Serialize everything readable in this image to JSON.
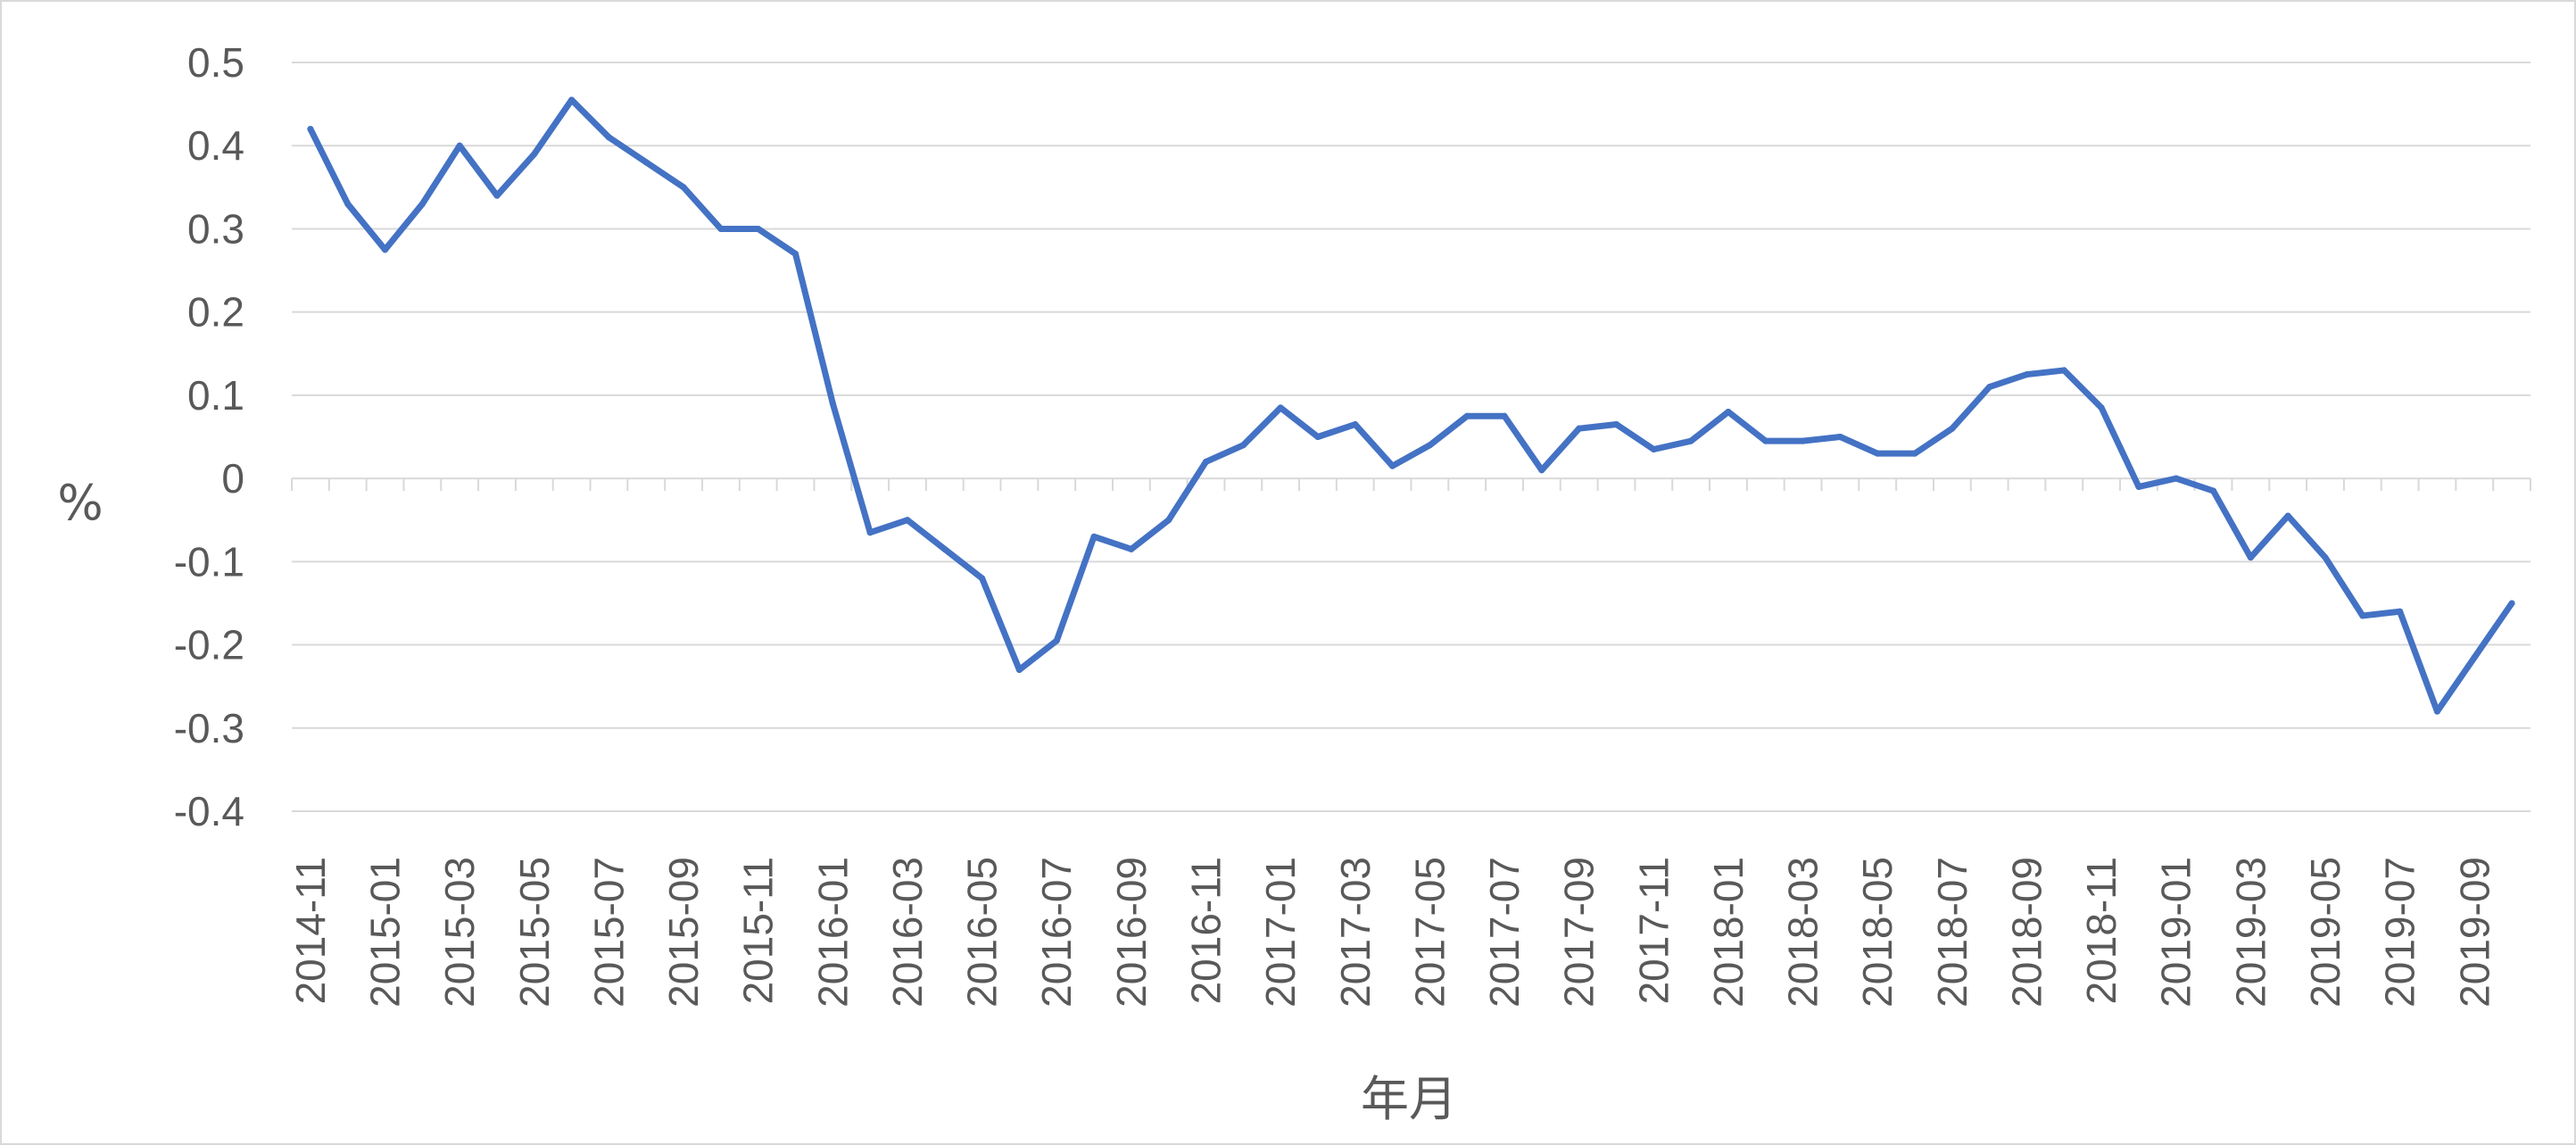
{
  "chart_data": {
    "type": "line",
    "title": "",
    "xlabel": "年月",
    "ylabel": "%",
    "ylim": [
      -0.4,
      0.5
    ],
    "yticks": [
      0.5,
      0.4,
      0.3,
      0.2,
      0.1,
      0,
      -0.1,
      -0.2,
      -0.3,
      -0.4
    ],
    "ytick_labels": [
      "0.5",
      "0.4",
      "0.3",
      "0.2",
      "0.1",
      "0",
      "-0.1",
      "-0.2",
      "-0.3",
      "-0.4"
    ],
    "grid": true,
    "legend": "none",
    "line_color": "#4472c4",
    "x": [
      "2014-11",
      "2014-12",
      "2015-01",
      "2015-02",
      "2015-03",
      "2015-04",
      "2015-05",
      "2015-06",
      "2015-07",
      "2015-08",
      "2015-09",
      "2015-10",
      "2015-11",
      "2015-12",
      "2016-01",
      "2016-02",
      "2016-03",
      "2016-04",
      "2016-05",
      "2016-06",
      "2016-07",
      "2016-08",
      "2016-09",
      "2016-10",
      "2016-11",
      "2016-12",
      "2017-01",
      "2017-02",
      "2017-03",
      "2017-04",
      "2017-05",
      "2017-06",
      "2017-07",
      "2017-08",
      "2017-09",
      "2017-10",
      "2017-11",
      "2017-12",
      "2018-01",
      "2018-02",
      "2018-03",
      "2018-04",
      "2018-05",
      "2018-06",
      "2018-07",
      "2018-08",
      "2018-09",
      "2018-10",
      "2018-11",
      "2018-12",
      "2019-01",
      "2019-02",
      "2019-03",
      "2019-04",
      "2019-05",
      "2019-06",
      "2019-07",
      "2019-08",
      "2019-09",
      "2019-10"
    ],
    "x_tick_labels": [
      "2014-11",
      "2015-01",
      "2015-03",
      "2015-05",
      "2015-07",
      "2015-09",
      "2015-11",
      "2016-01",
      "2016-03",
      "2016-05",
      "2016-07",
      "2016-09",
      "2016-11",
      "2017-01",
      "2017-03",
      "2017-05",
      "2017-07",
      "2017-09",
      "2017-11",
      "2018-01",
      "2018-03",
      "2018-05",
      "2018-07",
      "2018-09",
      "2018-11",
      "2019-01",
      "2019-03",
      "2019-05",
      "2019-07",
      "2019-09"
    ],
    "values": [
      0.42,
      0.33,
      0.275,
      0.33,
      0.4,
      0.34,
      0.39,
      0.455,
      0.41,
      0.38,
      0.35,
      0.3,
      0.3,
      0.27,
      0.09,
      -0.065,
      -0.05,
      -0.085,
      -0.12,
      -0.23,
      -0.195,
      -0.07,
      -0.085,
      -0.05,
      0.02,
      0.04,
      0.085,
      0.05,
      0.065,
      0.015,
      0.04,
      0.075,
      0.075,
      0.01,
      0.06,
      0.065,
      0.035,
      0.045,
      0.08,
      0.045,
      0.045,
      0.05,
      0.03,
      0.03,
      0.06,
      0.11,
      0.125,
      0.13,
      0.085,
      -0.01,
      0.0,
      -0.015,
      -0.095,
      -0.045,
      -0.095,
      -0.165,
      -0.16,
      -0.28,
      -0.215,
      -0.15
    ]
  }
}
